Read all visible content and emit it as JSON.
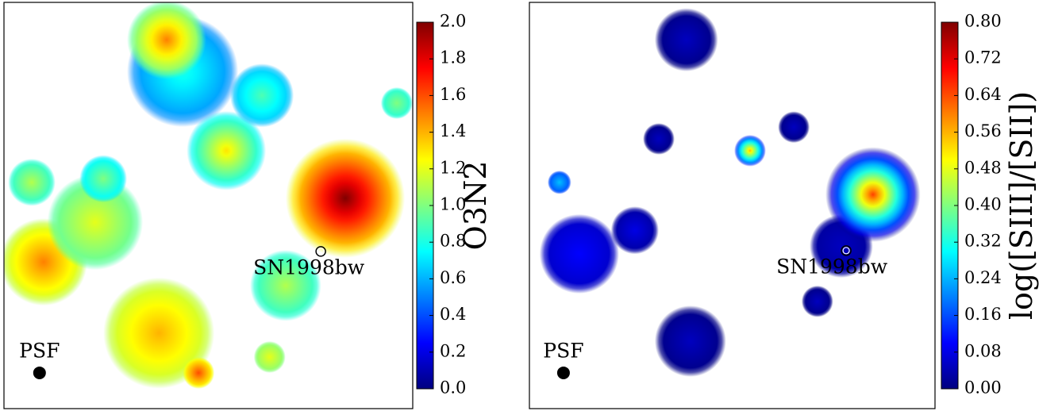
{
  "chart_data": [
    {
      "type": "heatmap",
      "colormap": "jet",
      "colorbar_label": "O3N2",
      "clim": [
        0,
        2.0
      ],
      "cticks": [
        {
          "value": 0,
          "label": "0.0"
        },
        0.2,
        0.4,
        0.6,
        0.8,
        {
          "value": 1.0,
          "label": "1.0"
        },
        1.2,
        1.4,
        1.6,
        1.8,
        {
          "value": 2.0,
          "label": "2.0"
        }
      ],
      "xlim": [
        0,
        100
      ],
      "ylim": [
        0,
        100
      ],
      "blobs": [
        {
          "x": 43.7,
          "y": 83.0,
          "r": 13.6,
          "value": 0.8,
          "edge": 0.5
        },
        {
          "x": 39.8,
          "y": 90.8,
          "r": 9.7,
          "value": 1.5,
          "edge": 0.9
        },
        {
          "x": 54.4,
          "y": 63.5,
          "r": 9.7,
          "value": 1.3,
          "edge": 0.7
        },
        {
          "x": 9.7,
          "y": 36.1,
          "r": 10.7,
          "value": 1.5,
          "edge": 1.1
        },
        {
          "x": 37.9,
          "y": 18.6,
          "r": 13.6,
          "value": 1.4,
          "edge": 1.1
        },
        {
          "x": 22.3,
          "y": 45.9,
          "r": 11.7,
          "value": 1.2,
          "edge": 0.9
        },
        {
          "x": 68.9,
          "y": 30.3,
          "r": 8.7,
          "value": 1.1,
          "edge": 0.8
        },
        {
          "x": 6.8,
          "y": 55.7,
          "r": 5.8,
          "value": 1.1,
          "edge": 0.8
        },
        {
          "x": 63.1,
          "y": 77.1,
          "r": 7.8,
          "value": 0.9,
          "edge": 0.6
        },
        {
          "x": 24.3,
          "y": 56.6,
          "r": 5.8,
          "value": 1.0,
          "edge": 0.7
        },
        {
          "x": 65.0,
          "y": 12.7,
          "r": 3.9,
          "value": 1.2,
          "edge": 1.0
        },
        {
          "x": 47.6,
          "y": 8.8,
          "r": 3.9,
          "value": 1.6,
          "edge": 1.2
        },
        {
          "x": 96.1,
          "y": 75.2,
          "r": 3.9,
          "value": 1.0,
          "edge": 0.8
        },
        {
          "x": 83.5,
          "y": 51.8,
          "r": 14.6,
          "value": 2.0,
          "edge": 1.2
        }
      ],
      "target": {
        "text": "SN1998bw",
        "x": 77.5,
        "y": 38.7
      },
      "psf": {
        "text": "PSF",
        "x": 8.7,
        "y": 8.8
      }
    },
    {
      "type": "heatmap",
      "colormap": "jet",
      "colorbar_label": "log([SIII]/[SII])",
      "clim": [
        0,
        0.8
      ],
      "cticks": [
        {
          "value": 0,
          "label": "0.00"
        },
        0.08,
        0.16,
        0.24,
        0.32,
        {
          "value": 0.4,
          "label": "0.40"
        },
        0.48,
        0.56,
        0.64,
        0.72,
        {
          "value": 0.8,
          "label": "0.80"
        }
      ],
      "xlim": [
        0,
        100
      ],
      "ylim": [
        0,
        100
      ],
      "blobs": [
        {
          "x": 38.7,
          "y": 90.8,
          "r": 7.8,
          "value": 0.05,
          "edge": 0.0
        },
        {
          "x": 12.3,
          "y": 38.1,
          "r": 9.8,
          "value": 0.1,
          "edge": 0.05
        },
        {
          "x": 76.9,
          "y": 40.0,
          "r": 7.8,
          "value": 0.05,
          "edge": 0.02
        },
        {
          "x": 39.7,
          "y": 16.6,
          "r": 8.8,
          "value": 0.05,
          "edge": 0.0
        },
        {
          "x": 26.0,
          "y": 43.9,
          "r": 5.9,
          "value": 0.08,
          "edge": 0.02
        },
        {
          "x": 31.9,
          "y": 66.4,
          "r": 3.9,
          "value": 0.05,
          "edge": 0.0
        },
        {
          "x": 71.0,
          "y": 26.4,
          "r": 3.9,
          "value": 0.05,
          "edge": 0.0
        },
        {
          "x": 7.4,
          "y": 55.7,
          "r": 2.9,
          "value": 0.25,
          "edge": 0.15
        },
        {
          "x": 65.2,
          "y": 69.3,
          "r": 3.9,
          "value": 0.05,
          "edge": 0.0
        },
        {
          "x": 84.7,
          "y": 52.7,
          "r": 11.7,
          "value": 0.65,
          "edge": 0.0
        },
        {
          "x": 54.4,
          "y": 63.5,
          "r": 3.9,
          "value": 0.55,
          "edge": 0.1
        }
      ],
      "target": {
        "text": "SN1998bw",
        "x": 78.1,
        "y": 38.9
      },
      "psf": {
        "text": "PSF",
        "x": 8.4,
        "y": 8.8
      }
    }
  ]
}
